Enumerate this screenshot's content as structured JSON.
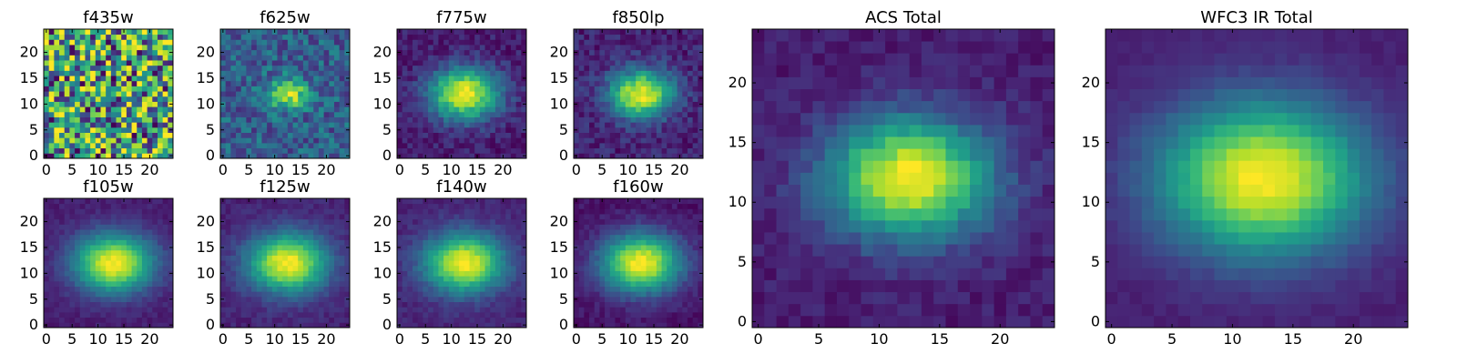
{
  "figure": {
    "colormap": [
      "#440154",
      "#482878",
      "#3e4989",
      "#31688e",
      "#26828e",
      "#1f9e89",
      "#35b779",
      "#6ece58",
      "#b5de2b",
      "#fde725"
    ],
    "axis_color": "#000000"
  },
  "chart_data": [
    {
      "type": "heatmap",
      "title": "f435w",
      "grid_size": 25,
      "source_radius": 0,
      "noise": 1.0,
      "base": 0.45,
      "peak": 0.0,
      "xticks": [
        0,
        5,
        10,
        15,
        20
      ],
      "yticks": [
        0,
        5,
        10,
        15,
        20
      ],
      "xlim": [
        0,
        25
      ],
      "ylim": [
        0,
        25
      ],
      "center": [
        13,
        12.5
      ]
    },
    {
      "type": "heatmap",
      "title": "f625w",
      "grid_size": 25,
      "source_radius": 2.0,
      "noise": 0.35,
      "base": 0.3,
      "peak": 0.65,
      "xticks": [
        0,
        5,
        10,
        15,
        20
      ],
      "yticks": [
        0,
        5,
        10,
        15,
        20
      ],
      "xlim": [
        0,
        25
      ],
      "ylim": [
        0,
        25
      ],
      "center": [
        13,
        12.5
      ]
    },
    {
      "type": "heatmap",
      "title": "f775w",
      "grid_size": 25,
      "source_radius": 3.5,
      "noise": 0.18,
      "base": 0.08,
      "peak": 0.9,
      "xticks": [
        0,
        5,
        10,
        15,
        20
      ],
      "yticks": [
        0,
        5,
        10,
        15,
        20
      ],
      "xlim": [
        0,
        25
      ],
      "ylim": [
        0,
        25
      ],
      "center": [
        13,
        12.5
      ]
    },
    {
      "type": "heatmap",
      "title": "f850lp",
      "grid_size": 25,
      "source_radius": 3.2,
      "noise": 0.2,
      "base": 0.1,
      "peak": 0.88,
      "xticks": [
        0,
        5,
        10,
        15,
        20
      ],
      "yticks": [
        0,
        5,
        10,
        15,
        20
      ],
      "xlim": [
        0,
        25
      ],
      "ylim": [
        0,
        25
      ],
      "center": [
        13,
        12.5
      ]
    },
    {
      "type": "heatmap",
      "title": "f105w",
      "grid_size": 25,
      "source_radius": 4.0,
      "noise": 0.08,
      "base": 0.08,
      "peak": 0.92,
      "xticks": [
        0,
        5,
        10,
        15,
        20
      ],
      "yticks": [
        0,
        5,
        10,
        15,
        20
      ],
      "xlim": [
        0,
        25
      ],
      "ylim": [
        0,
        25
      ],
      "center": [
        13.5,
        12.5
      ]
    },
    {
      "type": "heatmap",
      "title": "f125w",
      "grid_size": 25,
      "source_radius": 4.0,
      "noise": 0.1,
      "base": 0.1,
      "peak": 0.9,
      "xticks": [
        0,
        5,
        10,
        15,
        20
      ],
      "yticks": [
        0,
        5,
        10,
        15,
        20
      ],
      "xlim": [
        0,
        25
      ],
      "ylim": [
        0,
        25
      ],
      "center": [
        13,
        12.5
      ]
    },
    {
      "type": "heatmap",
      "title": "f140w",
      "grid_size": 25,
      "source_radius": 4.0,
      "noise": 0.1,
      "base": 0.1,
      "peak": 0.9,
      "xticks": [
        0,
        5,
        10,
        15,
        20
      ],
      "yticks": [
        0,
        5,
        10,
        15,
        20
      ],
      "xlim": [
        0,
        25
      ],
      "ylim": [
        0,
        25
      ],
      "center": [
        13,
        12.5
      ]
    },
    {
      "type": "heatmap",
      "title": "f160w",
      "grid_size": 25,
      "source_radius": 4.0,
      "noise": 0.1,
      "base": 0.05,
      "peak": 0.95,
      "xticks": [
        0,
        5,
        10,
        15,
        20
      ],
      "yticks": [
        0,
        5,
        10,
        15,
        20
      ],
      "xlim": [
        0,
        25
      ],
      "ylim": [
        0,
        25
      ],
      "center": [
        13,
        12.5
      ]
    },
    {
      "type": "heatmap",
      "title": "ACS Total",
      "grid_size": 25,
      "source_radius": 3.5,
      "noise": 0.12,
      "base": 0.08,
      "peak": 0.92,
      "xticks": [
        0,
        5,
        10,
        15,
        20
      ],
      "yticks": [
        0,
        5,
        10,
        15,
        20
      ],
      "xlim": [
        0,
        25
      ],
      "ylim": [
        0,
        25
      ],
      "center": [
        13,
        12.5
      ]
    },
    {
      "type": "heatmap",
      "title": "WFC3 IR Total",
      "grid_size": 25,
      "source_radius": 4.5,
      "noise": 0.05,
      "base": 0.08,
      "peak": 0.92,
      "xticks": [
        0,
        5,
        10,
        15,
        20
      ],
      "yticks": [
        0,
        5,
        10,
        15,
        20
      ],
      "xlim": [
        0,
        25
      ],
      "ylim": [
        0,
        25
      ],
      "center": [
        13,
        12.5
      ]
    }
  ]
}
